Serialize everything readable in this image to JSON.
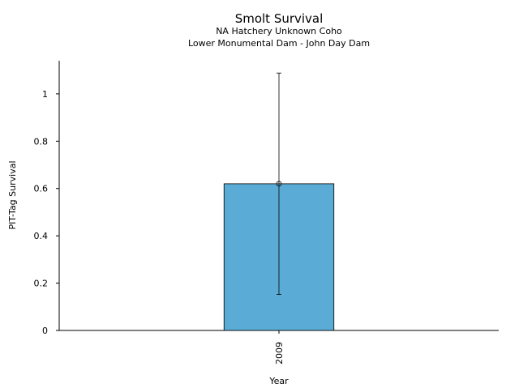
{
  "chart_data": {
    "type": "bar",
    "title": "Smolt Survival",
    "subtitle_lines": [
      "NA Hatchery Unknown Coho",
      "Lower Monumental Dam - John Day Dam"
    ],
    "xlabel": "Year",
    "ylabel": "PIT-Tag Survival",
    "categories": [
      "2009"
    ],
    "values": [
      0.62
    ],
    "error_low": [
      0.152
    ],
    "error_high": [
      1.088
    ],
    "ylim": [
      0,
      1.14
    ],
    "yticks": [
      0,
      0.2,
      0.4,
      0.6,
      0.8,
      1
    ],
    "ytick_labels": [
      "0",
      "0.2",
      "0.4",
      "0.6",
      "0.8",
      "1"
    ],
    "bar_color": "#5aacd6",
    "grid": false,
    "legend": "none"
  }
}
